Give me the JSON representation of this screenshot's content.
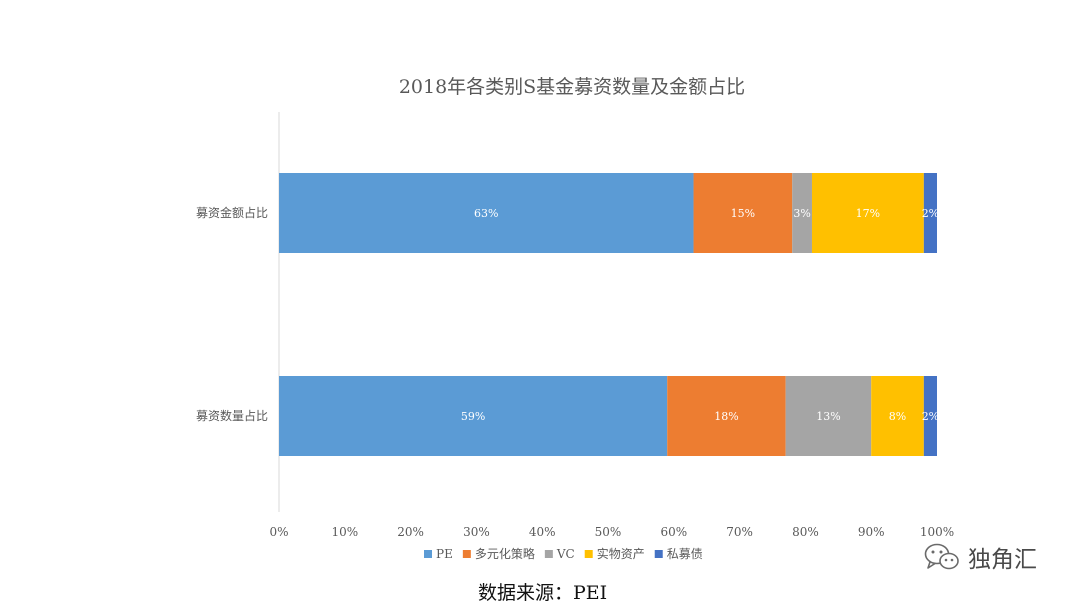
{
  "chart_data": {
    "type": "bar",
    "orientation": "horizontal",
    "stacked": "percent",
    "title": "2018年各类别S基金募资数量及金额占比",
    "categories": [
      "募资金额占比",
      "募资数量占比"
    ],
    "series": [
      {
        "name": "PE",
        "values": [
          63,
          59
        ],
        "labels": [
          "63%",
          "59%"
        ],
        "color": "#5B9BD5"
      },
      {
        "name": "多元化策略",
        "values": [
          15,
          18
        ],
        "labels": [
          "15%",
          "18%"
        ],
        "color": "#ED7D31"
      },
      {
        "name": "VC",
        "values": [
          3,
          13
        ],
        "labels": [
          "3%",
          "13%"
        ],
        "color": "#A5A5A5"
      },
      {
        "name": "实物资产",
        "values": [
          17,
          8
        ],
        "labels": [
          "17%",
          "8%"
        ],
        "color": "#FFC000"
      },
      {
        "name": "私募债",
        "values": [
          2,
          2
        ],
        "labels": [
          "2%",
          "2%"
        ],
        "color": "#4472C4"
      }
    ],
    "xlim": [
      0,
      100
    ],
    "xticks": [
      "0%",
      "10%",
      "20%",
      "30%",
      "40%",
      "50%",
      "60%",
      "70%",
      "80%",
      "90%",
      "100%"
    ],
    "legend_position": "bottom",
    "grid": false
  },
  "source": "数据来源：PEI",
  "watermark": {
    "text": "独角汇",
    "icon": "wechat-icon"
  }
}
